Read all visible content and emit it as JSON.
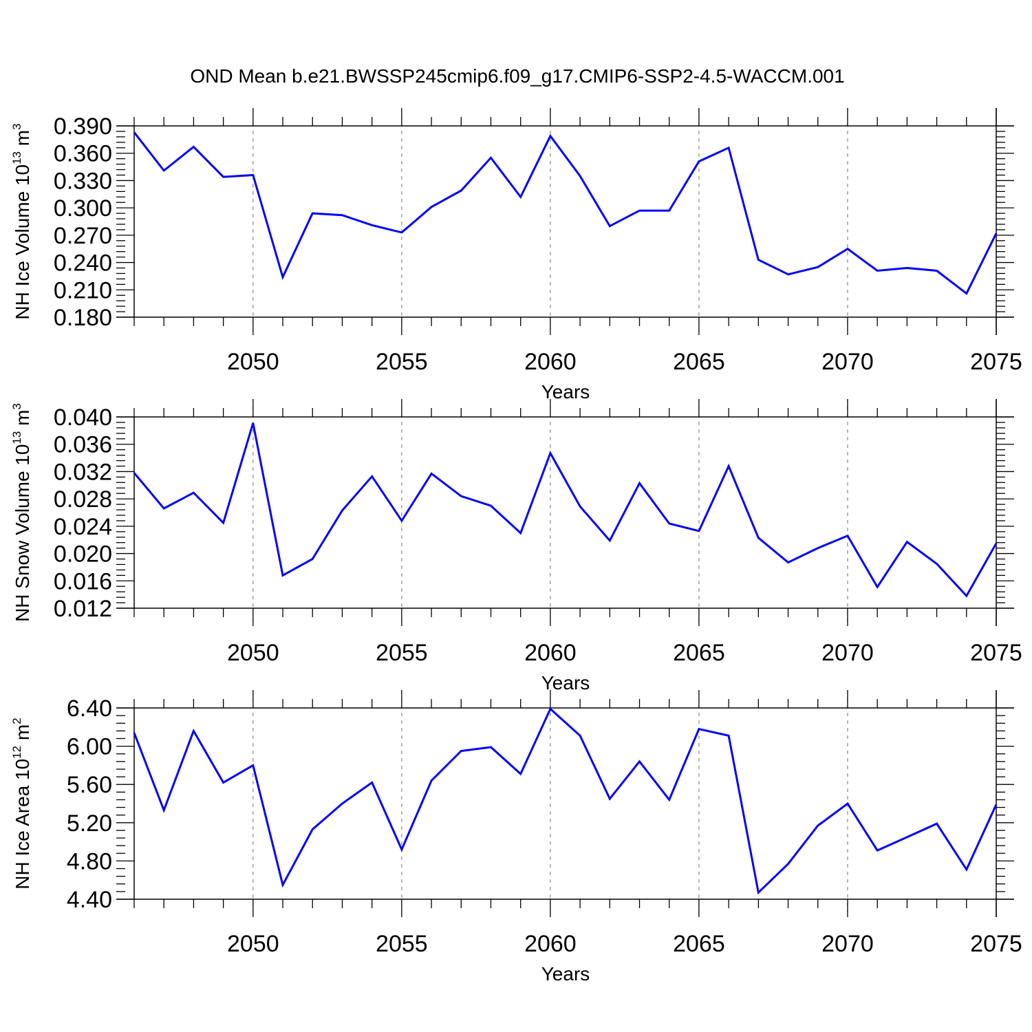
{
  "title": "OND Mean b.e21.BWSSP245cmip6.f09_g17.CMIP6-SSP2-4.5-WACCM.001",
  "colors": {
    "series": "#0000ff",
    "axis": "#000000",
    "grid": "#888888"
  },
  "chart_data": [
    {
      "type": "line",
      "ylabel": {
        "text": "NH Ice Volume 10",
        "exp": "13",
        "unit": " m",
        "unit_exp": "3"
      },
      "xlabel": "Years",
      "xlim": [
        2046,
        2075
      ],
      "ylim": [
        0.18,
        0.39
      ],
      "yticks": [
        "0.390",
        "0.360",
        "0.330",
        "0.300",
        "0.270",
        "0.240",
        "0.210",
        "0.180"
      ],
      "xticks": [
        "2050",
        "2055",
        "2060",
        "2065",
        "2070",
        "2075"
      ],
      "grid": "vertical dashed at major x ticks",
      "series": [
        {
          "x": [
            2046,
            2047,
            2048,
            2049,
            2050,
            2051,
            2052,
            2053,
            2054,
            2055,
            2056,
            2057,
            2058,
            2059,
            2060,
            2061,
            2062,
            2063,
            2064,
            2065,
            2066,
            2067,
            2068,
            2069,
            2070,
            2071,
            2072,
            2073,
            2074,
            2075
          ],
          "values": [
            0.383,
            0.341,
            0.367,
            0.334,
            0.336,
            0.224,
            0.294,
            0.292,
            0.281,
            0.273,
            0.301,
            0.319,
            0.355,
            0.312,
            0.379,
            0.335,
            0.28,
            0.297,
            0.297,
            0.351,
            0.366,
            0.243,
            0.227,
            0.235,
            0.255,
            0.231,
            0.234,
            0.231,
            0.206,
            0.272
          ]
        }
      ]
    },
    {
      "type": "line",
      "ylabel": {
        "text": "NH Snow Volume 10",
        "exp": "13",
        "unit": " m",
        "unit_exp": "3"
      },
      "xlabel": "Years",
      "xlim": [
        2046,
        2075
      ],
      "ylim": [
        0.012,
        0.04
      ],
      "yticks": [
        "0.040",
        "0.036",
        "0.032",
        "0.028",
        "0.024",
        "0.020",
        "0.016",
        "0.012"
      ],
      "xticks": [
        "2050",
        "2055",
        "2060",
        "2065",
        "2070",
        "2075"
      ],
      "grid": "vertical dashed at major x ticks",
      "series": [
        {
          "x": [
            2046,
            2047,
            2048,
            2049,
            2050,
            2051,
            2052,
            2053,
            2054,
            2055,
            2056,
            2057,
            2058,
            2059,
            2060,
            2061,
            2062,
            2063,
            2064,
            2065,
            2066,
            2067,
            2068,
            2069,
            2070,
            2071,
            2072,
            2073,
            2074,
            2075
          ],
          "values": [
            0.0318,
            0.0266,
            0.0289,
            0.0245,
            0.0391,
            0.0168,
            0.0192,
            0.0263,
            0.0313,
            0.0248,
            0.0317,
            0.0284,
            0.027,
            0.023,
            0.0347,
            0.0269,
            0.0219,
            0.0303,
            0.0244,
            0.0233,
            0.0328,
            0.0223,
            0.0187,
            0.0208,
            0.0226,
            0.0151,
            0.0217,
            0.0185,
            0.0138,
            0.0215
          ]
        }
      ]
    },
    {
      "type": "line",
      "ylabel": {
        "text": "NH Ice Area 10",
        "exp": "12",
        "unit": " m",
        "unit_exp": "2"
      },
      "xlabel": "Years",
      "xlim": [
        2046,
        2075
      ],
      "ylim": [
        4.4,
        6.4
      ],
      "yticks": [
        "6.40",
        "6.00",
        "5.60",
        "5.20",
        "4.80",
        "4.40"
      ],
      "xticks": [
        "2050",
        "2055",
        "2060",
        "2065",
        "2070",
        "2075"
      ],
      "grid": "vertical dashed at major x ticks",
      "series": [
        {
          "x": [
            2046,
            2047,
            2048,
            2049,
            2050,
            2051,
            2052,
            2053,
            2054,
            2055,
            2056,
            2057,
            2058,
            2059,
            2060,
            2061,
            2062,
            2063,
            2064,
            2065,
            2066,
            2067,
            2068,
            2069,
            2070,
            2071,
            2072,
            2073,
            2074,
            2075
          ],
          "values": [
            6.14,
            5.33,
            6.16,
            5.62,
            5.8,
            4.55,
            5.13,
            5.4,
            5.62,
            4.92,
            5.64,
            5.95,
            5.99,
            5.71,
            6.39,
            6.11,
            5.45,
            5.84,
            5.44,
            6.18,
            6.11,
            4.47,
            4.77,
            5.17,
            5.4,
            4.91,
            5.05,
            5.19,
            4.71,
            5.39
          ]
        }
      ]
    }
  ]
}
